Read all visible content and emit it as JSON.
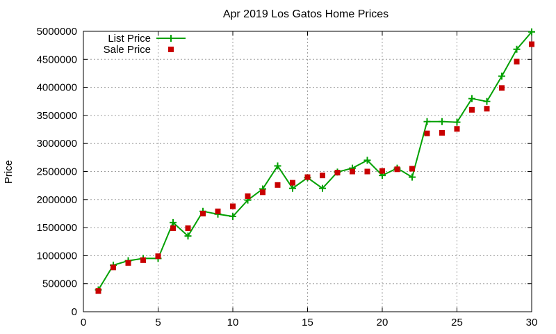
{
  "chart_data": {
    "type": "line",
    "title": "Apr 2019 Los Gatos Home Prices",
    "xlabel": "",
    "ylabel": "Price",
    "xlim": [
      0,
      30
    ],
    "ylim": [
      0,
      5000000
    ],
    "xticks": [
      0,
      5,
      10,
      15,
      20,
      25,
      30
    ],
    "yticks": [
      0,
      500000,
      1000000,
      1500000,
      2000000,
      2500000,
      3000000,
      3500000,
      4000000,
      4500000,
      5000000
    ],
    "grid": true,
    "legend_position": "top-left",
    "x": [
      1,
      2,
      3,
      4,
      5,
      6,
      7,
      8,
      9,
      10,
      11,
      12,
      13,
      14,
      15,
      16,
      17,
      18,
      19,
      20,
      21,
      22,
      23,
      24,
      25,
      26,
      27,
      28,
      29,
      30
    ],
    "series": [
      {
        "name": "List Price",
        "style": "line-with-plus-markers",
        "color": "#00a000",
        "values": [
          390000,
          830000,
          910000,
          950000,
          950000,
          1590000,
          1350000,
          1790000,
          1740000,
          1700000,
          1990000,
          2190000,
          2600000,
          2200000,
          2390000,
          2200000,
          2490000,
          2560000,
          2700000,
          2430000,
          2560000,
          2400000,
          3390000,
          3390000,
          3380000,
          3800000,
          3750000,
          4200000,
          4680000,
          4990000
        ]
      },
      {
        "name": "Sale Price",
        "style": "square-markers",
        "color": "#c80000",
        "values": [
          370000,
          790000,
          870000,
          920000,
          990000,
          1490000,
          1490000,
          1750000,
          1790000,
          1880000,
          2060000,
          2130000,
          2260000,
          2300000,
          2400000,
          2430000,
          2480000,
          2500000,
          2500000,
          2510000,
          2540000,
          2550000,
          3180000,
          3190000,
          3260000,
          3600000,
          3620000,
          3990000,
          4460000,
          4770000
        ]
      }
    ]
  }
}
